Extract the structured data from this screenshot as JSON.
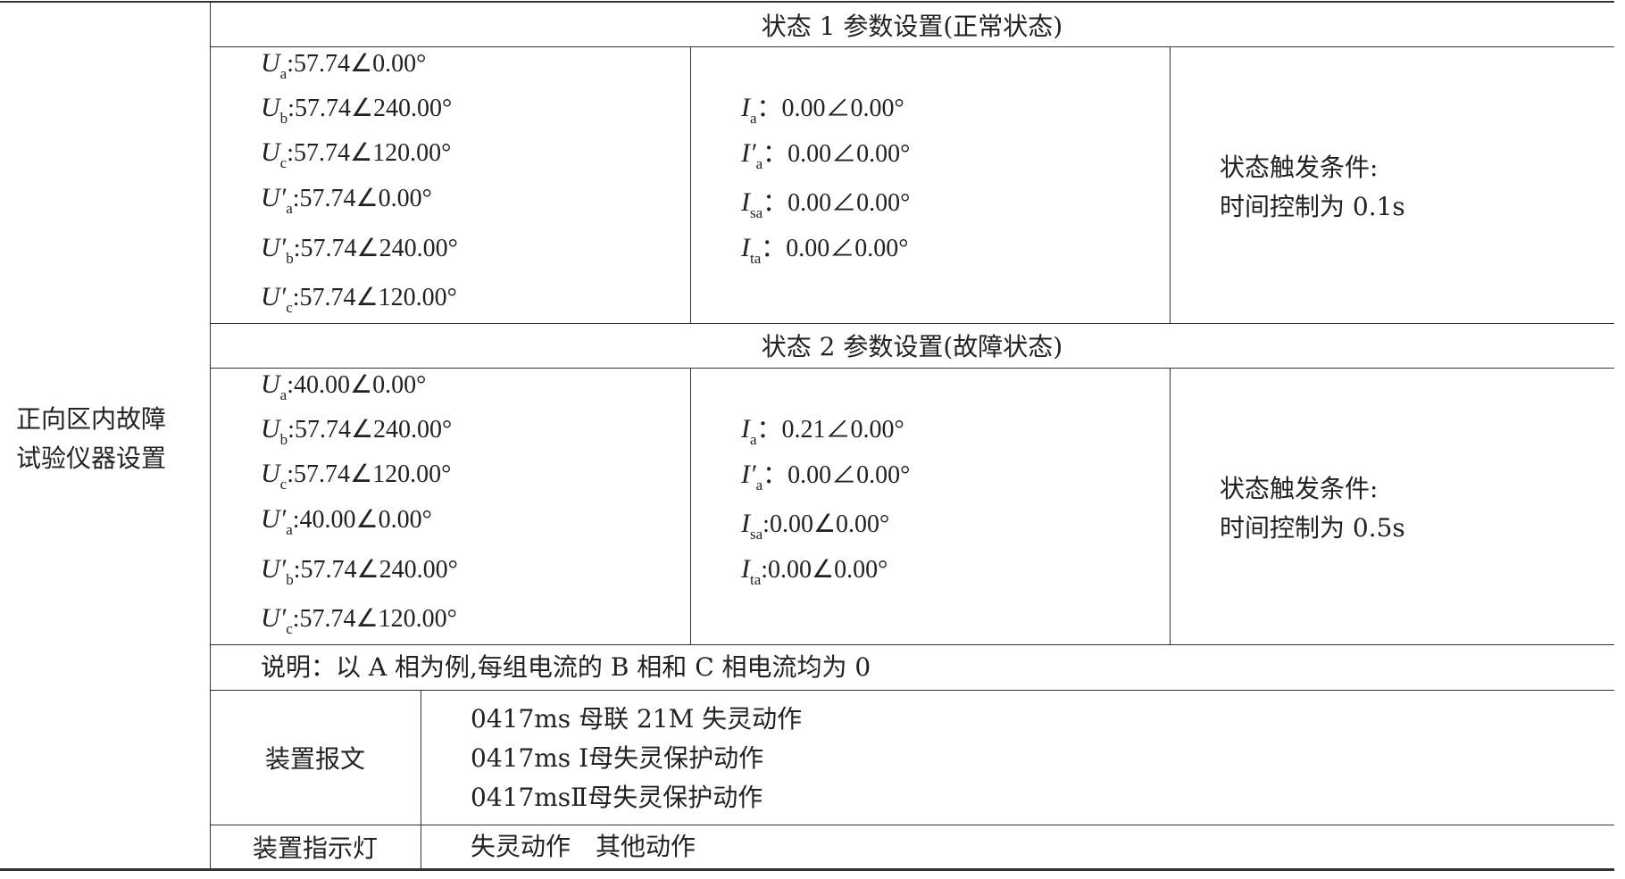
{
  "row_header": [
    "正向区内故障",
    "试验仪器设置"
  ],
  "states": [
    {
      "title": "状态 1 参数设置(正常状态)",
      "voltages": [
        {
          "sym": "U",
          "prime": "",
          "sub": "a",
          "value": ":57.74∠0.00°"
        },
        {
          "sym": "U",
          "prime": "",
          "sub": "b",
          "value": ":57.74∠240.00°"
        },
        {
          "sym": "U",
          "prime": "",
          "sub": "c",
          "value": ":57.74∠120.00°"
        },
        {
          "sym": "U",
          "prime": "′",
          "sub": "a",
          "value": ":57.74∠0.00°"
        },
        {
          "sym": "U",
          "prime": "′",
          "sub": "b",
          "value": ":57.74∠240.00°"
        },
        {
          "sym": "U",
          "prime": "′",
          "sub": "c",
          "value": ":57.74∠120.00°"
        }
      ],
      "currents": [
        {
          "sym": "I",
          "prime": "",
          "sub": "a",
          "value": "：0.00∠0.00°"
        },
        {
          "sym": "I",
          "prime": "′",
          "sub": "a",
          "value": "：0.00∠0.00°"
        },
        {
          "sym": "I",
          "prime": "",
          "sub": "sa",
          "value": "：0.00∠0.00°"
        },
        {
          "sym": "I",
          "prime": "",
          "sub": "ta",
          "value": "：0.00∠0.00°"
        }
      ],
      "trigger": [
        "状态触发条件:",
        "时间控制为 0.1s"
      ]
    },
    {
      "title": "状态 2 参数设置(故障状态)",
      "voltages": [
        {
          "sym": "U",
          "prime": "",
          "sub": "a",
          "value": ":40.00∠0.00°"
        },
        {
          "sym": "U",
          "prime": "",
          "sub": "b",
          "value": ":57.74∠240.00°"
        },
        {
          "sym": "U",
          "prime": "",
          "sub": "c",
          "value": ":57.74∠120.00°"
        },
        {
          "sym": "U",
          "prime": "′",
          "sub": "a",
          "value": ":40.00∠0.00°"
        },
        {
          "sym": "U",
          "prime": "′",
          "sub": "b",
          "value": ":57.74∠240.00°"
        },
        {
          "sym": "U",
          "prime": "′",
          "sub": "c",
          "value": ":57.74∠120.00°"
        }
      ],
      "currents": [
        {
          "sym": "I",
          "prime": "",
          "sub": "a",
          "value": "：0.21∠0.00°"
        },
        {
          "sym": "I",
          "prime": "′",
          "sub": "a",
          "value": "：0.00∠0.00°"
        },
        {
          "sym": "I",
          "prime": "",
          "sub": "sa",
          "value": ":0.00∠0.00°"
        },
        {
          "sym": "I",
          "prime": "",
          "sub": "ta",
          "value": ":0.00∠0.00°"
        }
      ],
      "trigger": [
        "状态触发条件:",
        "时间控制为 0.5s"
      ]
    }
  ],
  "note": "说明：以 A 相为例,每组电流的 B 相和 C 相电流均为 0",
  "device_message": {
    "label": "装置报文",
    "lines": [
      "0417ms 母联 21M 失灵动作",
      "0417ms Ⅰ母失灵保护动作",
      "0417msⅡ母失灵保护动作"
    ]
  },
  "device_indicator": {
    "label": "装置指示灯",
    "value": "失灵动作　其他动作"
  }
}
